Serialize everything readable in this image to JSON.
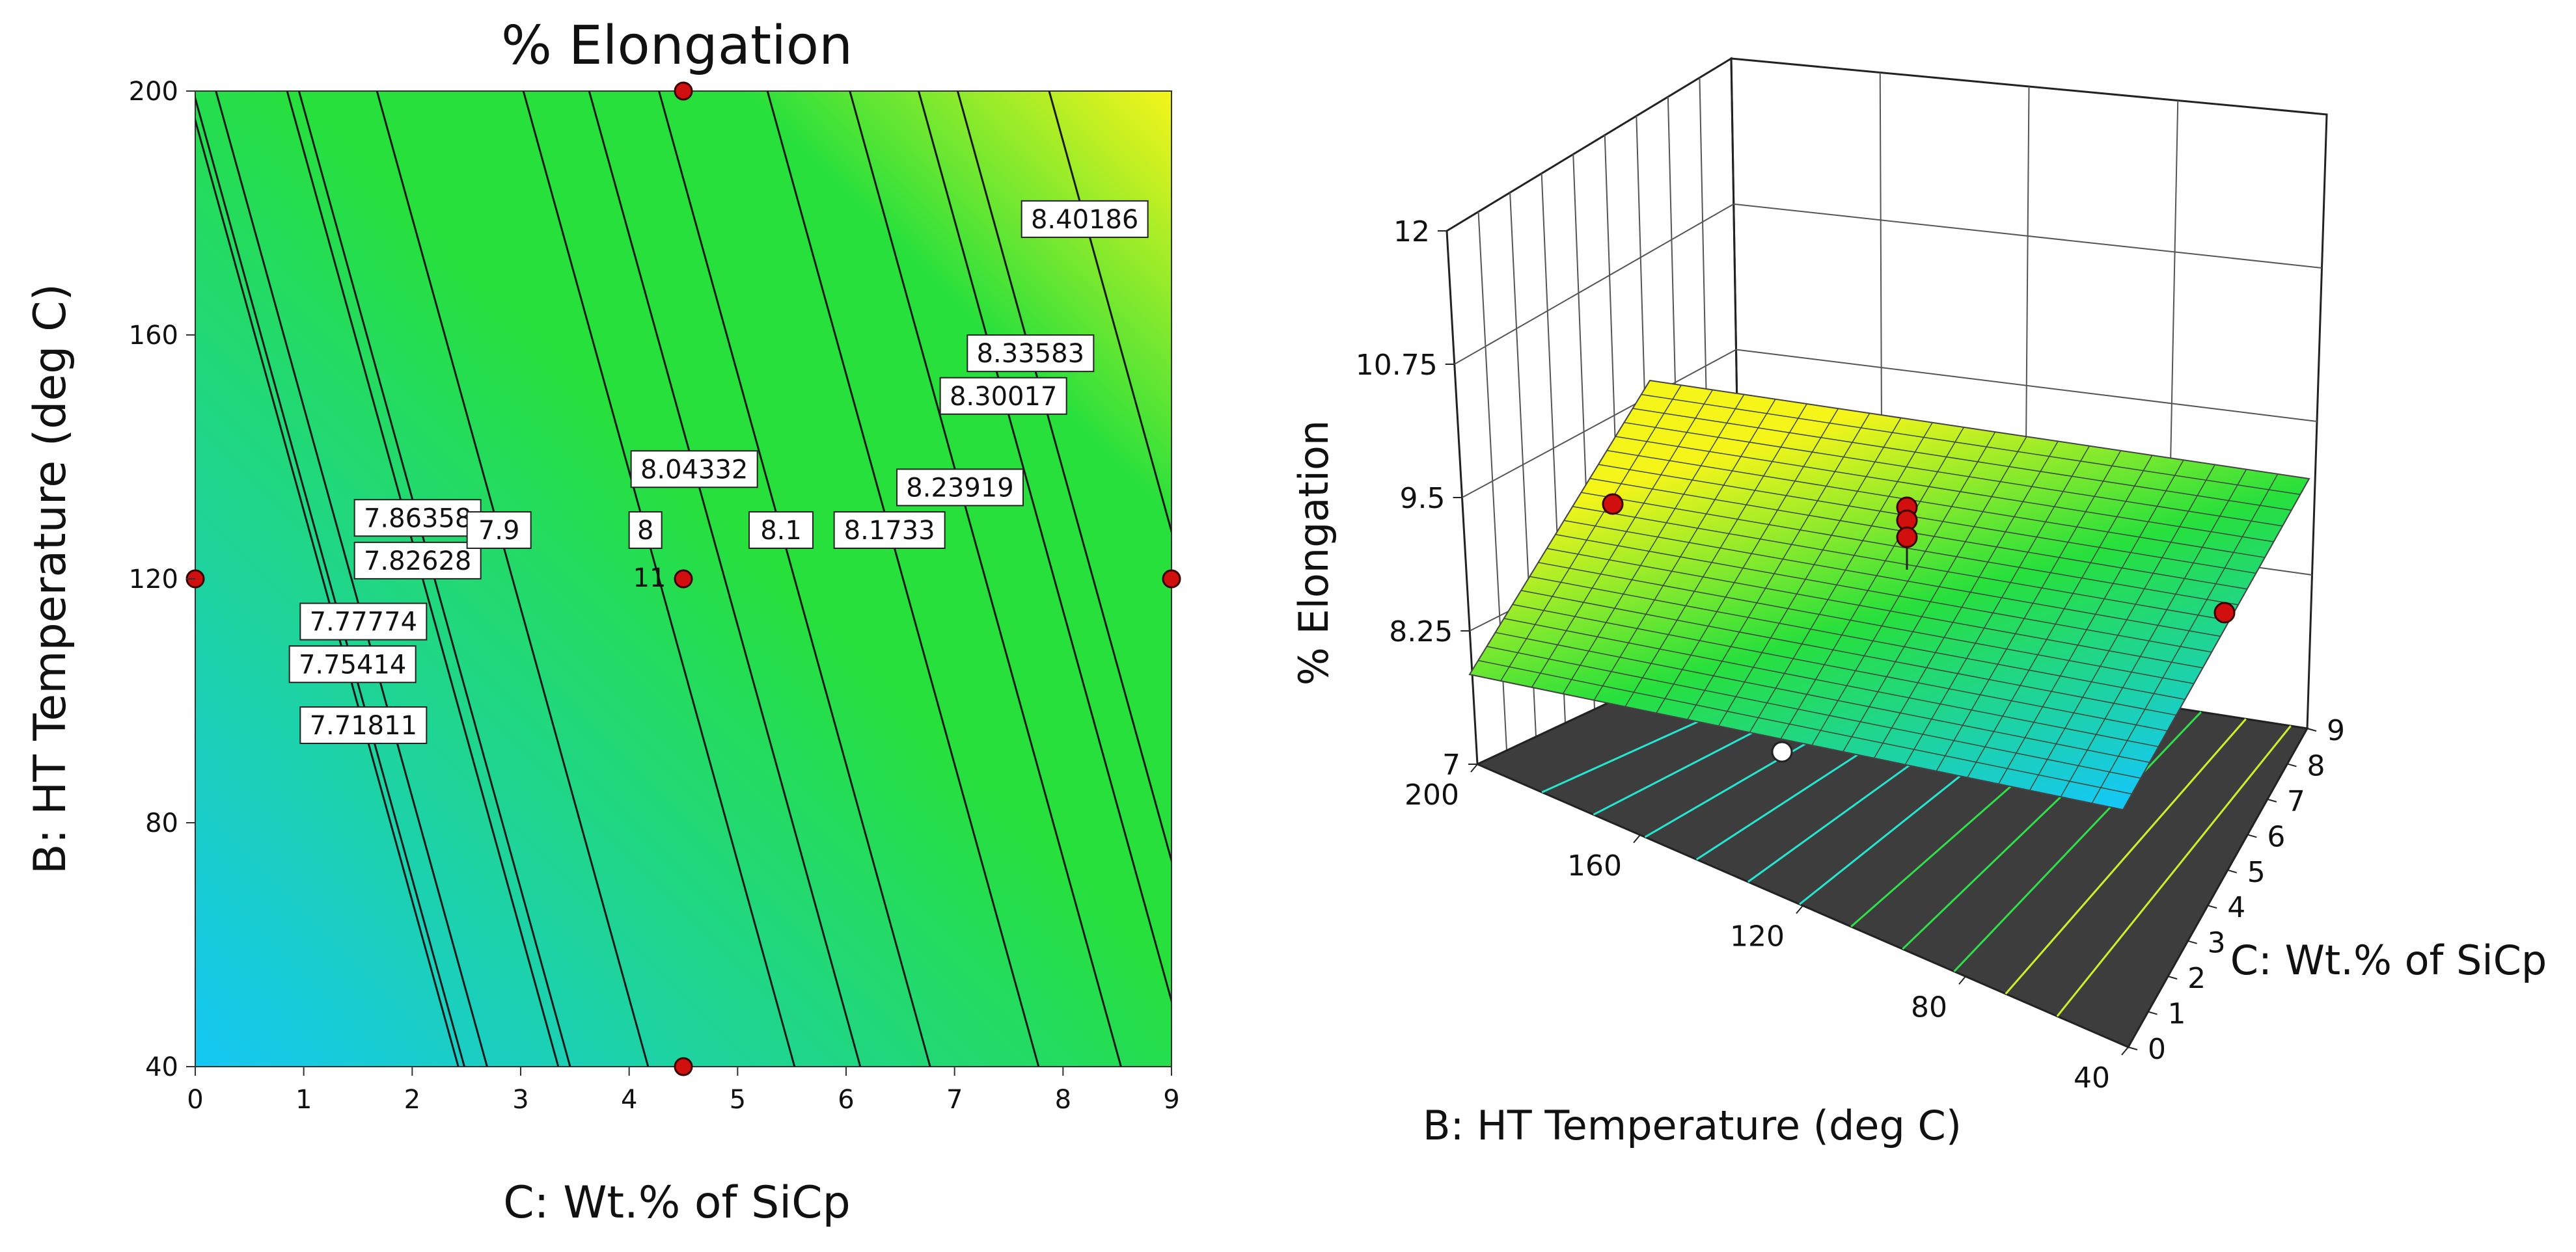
{
  "chart_data": [
    {
      "type": "contour",
      "title": "% Elongation",
      "xlabel": "C: Wt.% of SiCp",
      "ylabel": "B: HT Temperature (deg C)",
      "xlim": [
        0,
        9
      ],
      "ylim": [
        40,
        200
      ],
      "x_ticks": [
        "0",
        "1",
        "2",
        "3",
        "4",
        "5",
        "6",
        "7",
        "8",
        "9"
      ],
      "y_ticks": [
        "40",
        "80",
        "120",
        "160",
        "200"
      ],
      "color_low": "#15c8f5",
      "color_mid": "#27e03c",
      "color_high": "#f6f51a",
      "contour_levels": [
        {
          "label": "7.71811",
          "x": 1.55,
          "y": 96
        },
        {
          "label": "7.75414",
          "x": 1.45,
          "y": 106
        },
        {
          "label": "7.77774",
          "x": 1.55,
          "y": 113
        },
        {
          "label": "7.82628",
          "x": 2.05,
          "y": 123
        },
        {
          "label": "7.86358",
          "x": 2.05,
          "y": 130
        },
        {
          "label": "7.9",
          "x": 2.8,
          "y": 128
        },
        {
          "label": "8",
          "x": 4.15,
          "y": 128
        },
        {
          "label": "8.04332",
          "x": 4.6,
          "y": 138
        },
        {
          "label": "8.1",
          "x": 5.4,
          "y": 128
        },
        {
          "label": "8.1733",
          "x": 6.4,
          "y": 128
        },
        {
          "label": "8.23919",
          "x": 7.05,
          "y": 135
        },
        {
          "label": "8.30017",
          "x": 7.45,
          "y": 150
        },
        {
          "label": "8.33583",
          "x": 7.7,
          "y": 157
        },
        {
          "label": "8.40186",
          "x": 8.2,
          "y": 179
        }
      ],
      "design_points": [
        {
          "x": 4.5,
          "y": 200
        },
        {
          "x": 0,
          "y": 120
        },
        {
          "x": 4.5,
          "y": 120
        },
        {
          "x": 9,
          "y": 120
        },
        {
          "x": 4.5,
          "y": 40
        }
      ],
      "center_point_count_label": "11"
    },
    {
      "type": "surface3d",
      "zlabel": "% Elongation",
      "xlabel": "B: HT Temperature (deg C)",
      "ylabel": "C: Wt.% of SiCp",
      "x_ticks": [
        "200",
        "160",
        "120",
        "80",
        "40"
      ],
      "y_ticks": [
        "0",
        "1",
        "2",
        "3",
        "4",
        "5",
        "6",
        "7",
        "8",
        "9"
      ],
      "z_ticks": [
        "7",
        "8.25",
        "9.5",
        "10.75",
        "12"
      ],
      "zlim": [
        7,
        12
      ],
      "surface_range": [
        7.6,
        8.5
      ],
      "design_points": [
        {
          "B": 200,
          "C": 4.5,
          "z": 9.4
        },
        {
          "B": 120,
          "C": 4.5,
          "z": 9.3
        },
        {
          "B": 120,
          "C": 4.5,
          "z": 9.2
        },
        {
          "B": 120,
          "C": 4.5,
          "z": 8.9
        },
        {
          "B": 40,
          "C": 4.5,
          "z": 8.25
        }
      ]
    }
  ]
}
